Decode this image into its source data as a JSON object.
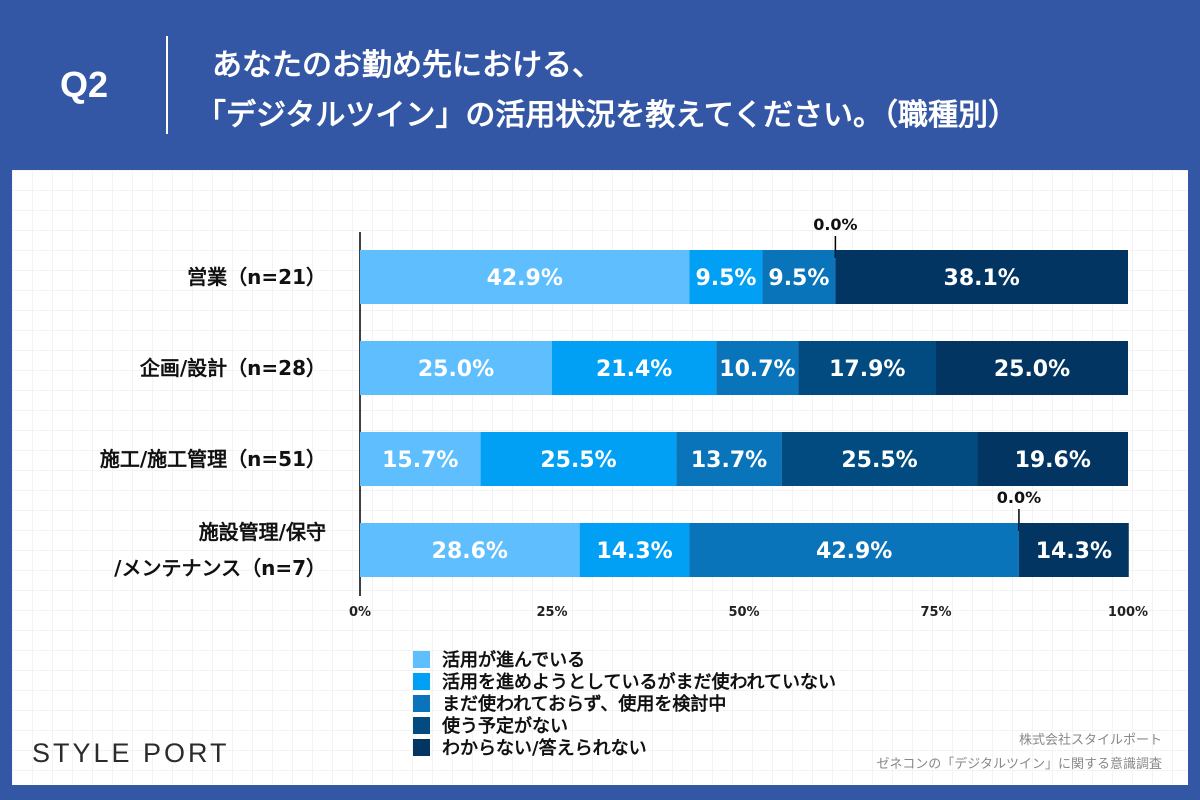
{
  "header": {
    "q": "Q2",
    "title_line1": "あなたのお勤め先における、",
    "title_line2": "「デジタルツイン」の活用状況を教えてください。（職種別）"
  },
  "chart_data": {
    "type": "bar",
    "orientation": "horizontal",
    "stacked": true,
    "categories": [
      "営業（n=21）",
      "企画/設計（n=28）",
      "施工/施工管理（n=51）",
      "施設管理/保守 /メンテナンス（n=7）"
    ],
    "category_lines": [
      [
        "営業（n=21）"
      ],
      [
        "企画/設計（n=28）"
      ],
      [
        "施工/施工管理（n=51）"
      ],
      [
        "施設管理/保守",
        "/メンテナンス（n=7）"
      ]
    ],
    "series": [
      {
        "name": "活用が進んでいる",
        "color": "#5fbefd",
        "values": [
          42.9,
          25.0,
          15.7,
          28.6
        ]
      },
      {
        "name": "活用を進めようとしているがまだ使われていない",
        "color": "#02a0f5",
        "values": [
          9.5,
          21.4,
          25.5,
          14.3
        ]
      },
      {
        "name": "まだ使われておらず、使用を検討中",
        "color": "#0a74ba",
        "values": [
          9.5,
          10.7,
          13.7,
          42.9
        ]
      },
      {
        "name": "使う予定がない",
        "color": "#024b80",
        "values": [
          0.0,
          17.9,
          25.5,
          0.0
        ]
      },
      {
        "name": "わからない/答えられない",
        "color": "#033563",
        "values": [
          38.1,
          25.0,
          19.6,
          14.3
        ]
      }
    ],
    "xlim": [
      0,
      100
    ],
    "xticks": [
      "0%",
      "25%",
      "50%",
      "75%",
      "100%"
    ],
    "legend": "bottom"
  },
  "footer": {
    "logo": "STYLE PORT",
    "source1": "株式会社スタイルポート",
    "source2": "ゼネコンの「デジタルツイン」に関する意識調査"
  }
}
